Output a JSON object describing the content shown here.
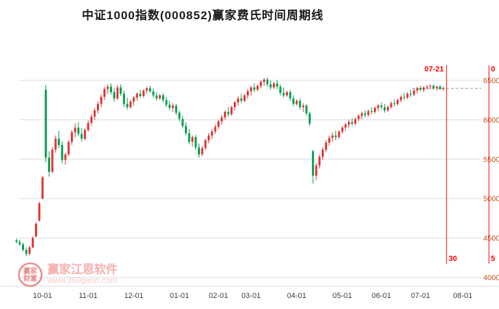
{
  "window": {
    "title": "中证1000指数(000852)赢家费氏时间周期线"
  },
  "watermark": {
    "brand": "赢家江恩软件",
    "site": "www.360gann.com",
    "logo_line1": "赢家",
    "logo_line2": "财富"
  },
  "colors": {
    "up": "#e03232",
    "down": "#00a050",
    "grid": "#dcdcdc",
    "axis_text": "#c25417",
    "tick_text": "#3d3d3d",
    "cycle": "#fe0000",
    "dash": "#9b9b9b",
    "logo": "#e04848"
  },
  "chart_data": {
    "type": "candlestick",
    "title": "中证1000指数(000852)赢家费氏时间周期线",
    "ylim": [
      4000,
      6850
    ],
    "y_ticks": [
      4000,
      4500,
      5000,
      5500,
      6000,
      6500
    ],
    "x_ticks": [
      {
        "label": "10-01",
        "index": 8
      },
      {
        "label": "11-01",
        "index": 22
      },
      {
        "label": "12-01",
        "index": 36
      },
      {
        "label": "01-01",
        "index": 50
      },
      {
        "label": "02-01",
        "index": 62
      },
      {
        "label": "03-01",
        "index": 72
      },
      {
        "label": "04-01",
        "index": 86
      },
      {
        "label": "05-01",
        "index": 100
      },
      {
        "label": "06-01",
        "index": 112
      },
      {
        "label": "07-01",
        "index": 124
      },
      {
        "label": "08-01",
        "index": 137
      }
    ],
    "cycle_lines": [
      {
        "top_label": "07-21",
        "bottom_label": "30",
        "index": 132
      },
      {
        "top_label": "0",
        "bottom_label": "5",
        "index": 145
      }
    ],
    "ohlc": [
      [
        4470,
        4500,
        4430,
        4450
      ],
      [
        4450,
        4480,
        4400,
        4420
      ],
      [
        4420,
        4440,
        4330,
        4350
      ],
      [
        4350,
        4380,
        4270,
        4300
      ],
      [
        4300,
        4400,
        4280,
        4380
      ],
      [
        4380,
        4520,
        4370,
        4500
      ],
      [
        4520,
        4700,
        4510,
        4680
      ],
      [
        4720,
        4960,
        4710,
        4940
      ],
      [
        5000,
        5290,
        4990,
        5270
      ],
      [
        6380,
        6440,
        5460,
        5520
      ],
      [
        5520,
        5600,
        5280,
        5340
      ],
      [
        5340,
        5650,
        5320,
        5620
      ],
      [
        5620,
        5800,
        5580,
        5760
      ],
      [
        5760,
        5860,
        5640,
        5680
      ],
      [
        5680,
        5730,
        5450,
        5490
      ],
      [
        5490,
        5580,
        5430,
        5560
      ],
      [
        5560,
        5740,
        5540,
        5720
      ],
      [
        5720,
        5870,
        5680,
        5840
      ],
      [
        5840,
        5950,
        5780,
        5900
      ],
      [
        5900,
        5970,
        5790,
        5820
      ],
      [
        5820,
        5890,
        5720,
        5760
      ],
      [
        5760,
        5890,
        5740,
        5870
      ],
      [
        5870,
        5990,
        5850,
        5960
      ],
      [
        5960,
        6070,
        5920,
        6040
      ],
      [
        6040,
        6150,
        6000,
        6120
      ],
      [
        6120,
        6230,
        6080,
        6200
      ],
      [
        6200,
        6320,
        6160,
        6290
      ],
      [
        6290,
        6420,
        6250,
        6390
      ],
      [
        6390,
        6450,
        6330,
        6420
      ],
      [
        6420,
        6460,
        6320,
        6350
      ],
      [
        6350,
        6400,
        6230,
        6270
      ],
      [
        6270,
        6440,
        6250,
        6410
      ],
      [
        6410,
        6450,
        6300,
        6330
      ],
      [
        6330,
        6370,
        6160,
        6200
      ],
      [
        6200,
        6280,
        6130,
        6160
      ],
      [
        6160,
        6250,
        6140,
        6230
      ],
      [
        6230,
        6300,
        6180,
        6280
      ],
      [
        6280,
        6350,
        6240,
        6330
      ],
      [
        6330,
        6380,
        6280,
        6300
      ],
      [
        6300,
        6390,
        6280,
        6370
      ],
      [
        6370,
        6420,
        6330,
        6400
      ],
      [
        6400,
        6430,
        6340,
        6360
      ],
      [
        6360,
        6400,
        6280,
        6310
      ],
      [
        6310,
        6350,
        6240,
        6270
      ],
      [
        6270,
        6330,
        6250,
        6310
      ],
      [
        6310,
        6340,
        6220,
        6250
      ],
      [
        6250,
        6290,
        6160,
        6190
      ],
      [
        6190,
        6240,
        6120,
        6150
      ],
      [
        6150,
        6210,
        6100,
        6180
      ],
      [
        6180,
        6200,
        6060,
        6090
      ],
      [
        6090,
        6120,
        5980,
        6010
      ],
      [
        6010,
        6050,
        5890,
        5920
      ],
      [
        5920,
        5970,
        5800,
        5830
      ],
      [
        5830,
        5880,
        5690,
        5720
      ],
      [
        5720,
        5800,
        5660,
        5780
      ],
      [
        5780,
        5810,
        5620,
        5650
      ],
      [
        5650,
        5700,
        5520,
        5560
      ],
      [
        5560,
        5670,
        5540,
        5640
      ],
      [
        5640,
        5760,
        5620,
        5740
      ],
      [
        5740,
        5830,
        5700,
        5800
      ],
      [
        5800,
        5880,
        5760,
        5850
      ],
      [
        5850,
        5940,
        5820,
        5910
      ],
      [
        5910,
        6000,
        5880,
        5980
      ],
      [
        5980,
        6060,
        5940,
        6030
      ],
      [
        6030,
        6120,
        6000,
        6100
      ],
      [
        6100,
        6160,
        6040,
        6070
      ],
      [
        6070,
        6180,
        6050,
        6160
      ],
      [
        6160,
        6240,
        6120,
        6220
      ],
      [
        6220,
        6300,
        6180,
        6270
      ],
      [
        6270,
        6330,
        6210,
        6240
      ],
      [
        6240,
        6330,
        6220,
        6310
      ],
      [
        6310,
        6390,
        6270,
        6360
      ],
      [
        6360,
        6430,
        6310,
        6410
      ],
      [
        6410,
        6460,
        6350,
        6380
      ],
      [
        6380,
        6450,
        6360,
        6430
      ],
      [
        6430,
        6500,
        6400,
        6480
      ],
      [
        6480,
        6530,
        6430,
        6510
      ],
      [
        6510,
        6540,
        6420,
        6450
      ],
      [
        6450,
        6500,
        6380,
        6410
      ],
      [
        6410,
        6480,
        6390,
        6460
      ],
      [
        6460,
        6500,
        6390,
        6420
      ],
      [
        6420,
        6450,
        6310,
        6340
      ],
      [
        6340,
        6410,
        6280,
        6310
      ],
      [
        6310,
        6370,
        6290,
        6350
      ],
      [
        6350,
        6380,
        6240,
        6270
      ],
      [
        6270,
        6310,
        6170,
        6200
      ],
      [
        6200,
        6260,
        6180,
        6240
      ],
      [
        6240,
        6270,
        6130,
        6160
      ],
      [
        6160,
        6210,
        6100,
        6180
      ],
      [
        6180,
        6200,
        6050,
        6080
      ],
      [
        6080,
        6100,
        5920,
        5950
      ],
      [
        5600,
        5620,
        5190,
        5290
      ],
      [
        5290,
        5450,
        5230,
        5420
      ],
      [
        5420,
        5560,
        5380,
        5530
      ],
      [
        5530,
        5650,
        5490,
        5620
      ],
      [
        5620,
        5740,
        5590,
        5710
      ],
      [
        5710,
        5800,
        5670,
        5770
      ],
      [
        5770,
        5840,
        5720,
        5800
      ],
      [
        5800,
        5860,
        5740,
        5780
      ],
      [
        5780,
        5870,
        5760,
        5850
      ],
      [
        5850,
        5920,
        5820,
        5900
      ],
      [
        5900,
        5960,
        5860,
        5940
      ],
      [
        5940,
        6000,
        5900,
        5970
      ],
      [
        5970,
        6020,
        5920,
        5950
      ],
      [
        5950,
        6030,
        5930,
        6010
      ],
      [
        6010,
        6070,
        5980,
        6050
      ],
      [
        6050,
        6100,
        6010,
        6080
      ],
      [
        6080,
        6120,
        6030,
        6060
      ],
      [
        6060,
        6130,
        6040,
        6110
      ],
      [
        6110,
        6160,
        6070,
        6100
      ],
      [
        6100,
        6170,
        6080,
        6150
      ],
      [
        6150,
        6200,
        6110,
        6180
      ],
      [
        6180,
        6220,
        6130,
        6160
      ],
      [
        6160,
        6200,
        6090,
        6120
      ],
      [
        6120,
        6180,
        6100,
        6160
      ],
      [
        6160,
        6230,
        6140,
        6210
      ],
      [
        6210,
        6260,
        6170,
        6200
      ],
      [
        6200,
        6270,
        6180,
        6250
      ],
      [
        6250,
        6310,
        6220,
        6290
      ],
      [
        6290,
        6340,
        6250,
        6280
      ],
      [
        6280,
        6350,
        6260,
        6330
      ],
      [
        6330,
        6380,
        6290,
        6320
      ],
      [
        6320,
        6390,
        6300,
        6370
      ],
      [
        6370,
        6420,
        6330,
        6400
      ],
      [
        6400,
        6430,
        6360,
        6380
      ],
      [
        6380,
        6420,
        6350,
        6410
      ],
      [
        6410,
        6440,
        6380,
        6420
      ],
      [
        6420,
        6450,
        6390,
        6430
      ],
      [
        6430,
        6450,
        6380,
        6400
      ],
      [
        6400,
        6430,
        6370,
        6420
      ],
      [
        6420,
        6440,
        6380,
        6390
      ],
      [
        6390,
        6420,
        6370,
        6400
      ]
    ]
  }
}
